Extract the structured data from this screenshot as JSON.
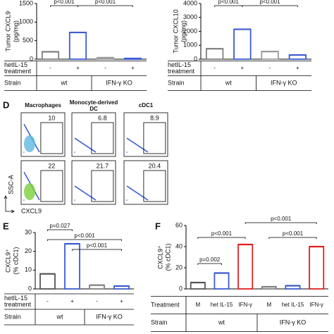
{
  "chart_data": [
    {
      "type": "bar",
      "ylabel": [
        "Tumor CXCL9",
        "(pg/mg)"
      ],
      "categories": [
        "-",
        "+",
        "-",
        "+"
      ],
      "values": [
        200,
        720,
        40,
        20
      ],
      "colors": [
        "#7f7f7f",
        "#3b5bd1",
        "#9a9a9a",
        "#3b5bd1"
      ],
      "ylim": [
        0,
        1500
      ],
      "yticks": [
        0,
        500,
        1000,
        1500
      ],
      "annotations": [
        "p<0.001",
        "p<0.001"
      ],
      "row_label": [
        "hetIL-15",
        "treatment"
      ],
      "group_label": "Strain",
      "groups": [
        "wt",
        "IFN-γ KO"
      ]
    },
    {
      "type": "bar",
      "ylabel": [
        "Tumor CXCL10",
        "(pg/mg)"
      ],
      "categories": [
        "-",
        "+",
        "-",
        "+"
      ],
      "values": [
        750,
        2150,
        550,
        300
      ],
      "colors": [
        "#7f7f7f",
        "#3b5bd1",
        "#9a9a9a",
        "#3b5bd1"
      ],
      "ylim": [
        0,
        4000
      ],
      "yticks": [
        0,
        1000,
        2000,
        3000,
        4000
      ],
      "annotations": [
        "p<0.001",
        "p<0.001"
      ],
      "row_label": [
        "hetIL-15",
        "treatment"
      ],
      "group_label": "Strain",
      "groups": [
        "wt",
        "IFN-γ KO"
      ]
    },
    {
      "type": "bar",
      "panel": "E",
      "ylabel": [
        "CXCL9⁺",
        "(% cDC1)"
      ],
      "categories": [
        "-",
        "+",
        "-",
        "+"
      ],
      "values": [
        8,
        24,
        2,
        1.5
      ],
      "colors": [
        "#555555",
        "#3b5bd1",
        "#7f7f7f",
        "#3b5bd1"
      ],
      "ylim": [
        0,
        30
      ],
      "yticks": [
        0,
        10,
        20,
        30
      ],
      "annotations": [
        "p=0.027",
        "p<0.001",
        "p<0.001"
      ],
      "row_label": [
        "hetIL-15",
        "treatment"
      ],
      "group_label": "Strain",
      "groups": [
        "wt",
        "IFN-γ KO"
      ]
    },
    {
      "type": "bar",
      "panel": "F",
      "ylabel": [
        "CXCL9⁺",
        "(% cDC1)"
      ],
      "categories": [
        "M",
        "het IL-15",
        "IFN-γ",
        "M",
        "het IL-15",
        "IFN-γ"
      ],
      "values": [
        6,
        15,
        42,
        2,
        3,
        40
      ],
      "colors": [
        "#555555",
        "#3b5bd1",
        "#e02020",
        "#7f7f7f",
        "#3b5bd1",
        "#e02020"
      ],
      "ylim": [
        0,
        60
      ],
      "yticks": [
        0,
        20,
        40,
        60
      ],
      "annotations": [
        "p=0.002",
        "p<0.001",
        "p<0.001",
        "p<0.001"
      ],
      "row_label": [
        "Treatment"
      ],
      "group_label": "Strain",
      "groups": [
        "wt",
        "IFN-γ KO"
      ]
    }
  ],
  "flow": {
    "panel": "D",
    "columns": [
      "Macrophages",
      "Monocyte-derived DC",
      "cDC1"
    ],
    "rows": [
      [
        "10",
        "6.8",
        "8.9"
      ],
      [
        "22",
        "21.7",
        "20.4"
      ]
    ],
    "y_label": "SSC-A",
    "x_label": "CXCL9"
  }
}
